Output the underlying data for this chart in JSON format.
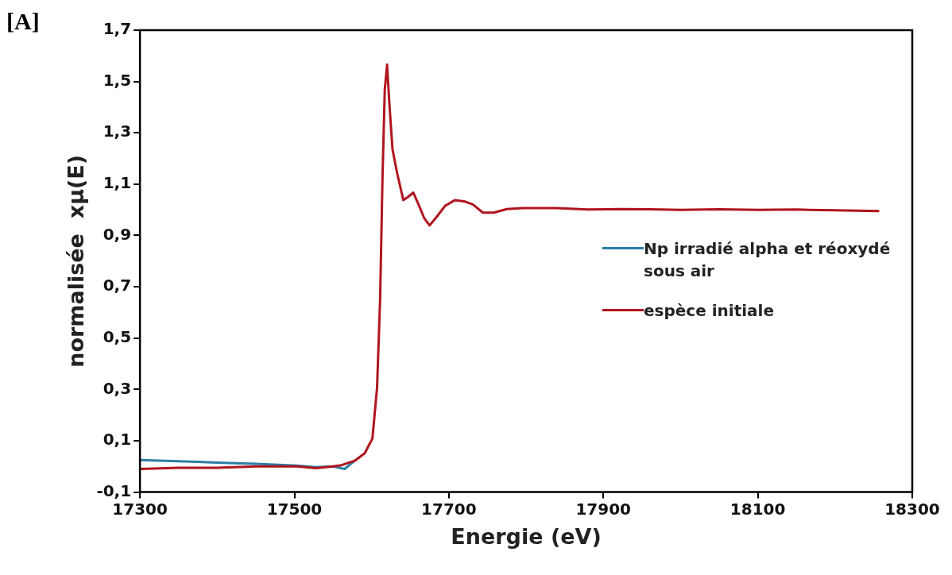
{
  "chart_data": {
    "type": "line",
    "xlabel": "Energie (eV)",
    "ylabel": "normalisée  xµ(E)",
    "annotations": [
      "[A]"
    ],
    "xlim": [
      17300,
      18300
    ],
    "xticks": [
      17300,
      17500,
      17700,
      17900,
      18100,
      18300
    ],
    "ylim": [
      -0.1,
      1.7
    ],
    "yticks": [
      {
        "value": -0.1,
        "label": "-0,1"
      },
      {
        "value": 0.1,
        "label": "0,1"
      },
      {
        "value": 0.3,
        "label": "0,3"
      },
      {
        "value": 0.5,
        "label": "0,5"
      },
      {
        "value": 0.7,
        "label": "0,7"
      },
      {
        "value": 0.9,
        "label": "0,9"
      },
      {
        "value": 1.1,
        "label": "1,1"
      },
      {
        "value": 1.3,
        "label": "1,3"
      },
      {
        "value": 1.5,
        "label": "1,5"
      },
      {
        "value": 1.7,
        "label": "1,7"
      }
    ],
    "grid": false,
    "legend": "right",
    "marker": "none",
    "line_style": "solid",
    "series": [
      {
        "name": "Np irradié alpha et réoxydé sous air",
        "color": "#2b7ea6",
        "x": [
          17300,
          17350,
          17400,
          17450,
          17503,
          17528,
          17550,
          17565,
          17578
        ],
        "values": [
          0.025,
          0.02,
          0.015,
          0.01,
          0.003,
          -0.003,
          0.0,
          -0.01,
          0.022
        ]
      },
      {
        "name": "espèce initiale",
        "color": "#b0151e",
        "x": [
          17300,
          17350,
          17400,
          17450,
          17503,
          17528,
          17550,
          17561,
          17578,
          17591,
          17601,
          17607,
          17611,
          17614,
          17617,
          17620,
          17623,
          17627,
          17633,
          17641,
          17647,
          17654,
          17660,
          17668,
          17675,
          17683,
          17695,
          17708,
          17721,
          17731,
          17744,
          17758,
          17775,
          17796,
          17838,
          17880,
          17922,
          17960,
          18000,
          18050,
          18100,
          18150,
          18200,
          18256
        ],
        "values": [
          -0.01,
          -0.005,
          -0.005,
          0.0,
          0.0,
          -0.007,
          0.0,
          0.005,
          0.022,
          0.051,
          0.109,
          0.306,
          0.655,
          1.119,
          1.468,
          1.566,
          1.41,
          1.236,
          1.143,
          1.038,
          1.05,
          1.067,
          1.026,
          0.968,
          0.939,
          0.968,
          1.015,
          1.038,
          1.032,
          1.021,
          0.989,
          0.989,
          1.003,
          1.007,
          1.007,
          1.001,
          1.003,
          1.002,
          1.0,
          1.002,
          1.0,
          1.001,
          0.998,
          0.995
        ]
      }
    ]
  }
}
